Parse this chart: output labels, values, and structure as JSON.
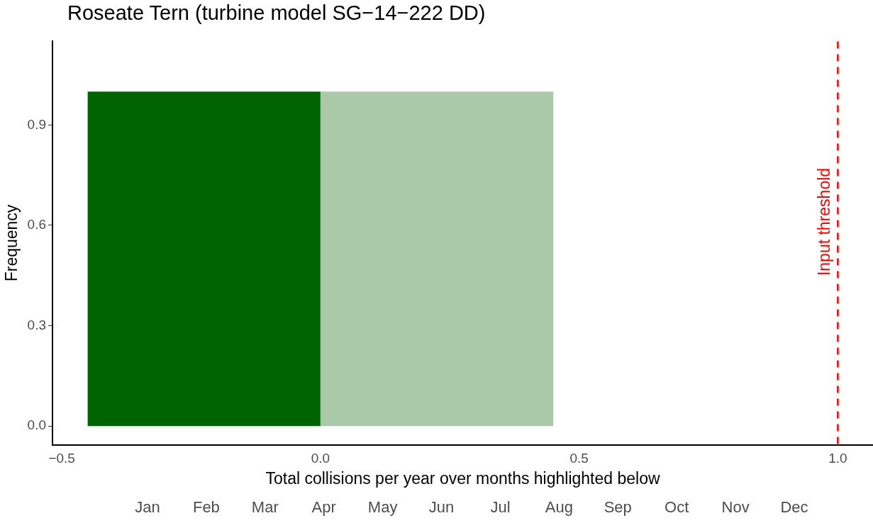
{
  "chart_data": {
    "type": "histogram",
    "title": "Roseate Tern (turbine model SG−14−222 DD)",
    "xlabel": "Total collisions per year over months highlighted below",
    "ylabel": "Frequency",
    "bins": [
      -0.45,
      0,
      0.45
    ],
    "values": [
      1,
      1
    ],
    "colors": [
      "#006400",
      "#a9c9a9"
    ],
    "xlim": [
      -0.518,
      1.068
    ],
    "xticks": [
      {
        "value": -0.5,
        "label": "−0.5"
      },
      {
        "value": 0,
        "label": "0.0"
      },
      {
        "value": 0.5,
        "label": "0.5"
      },
      {
        "value": 1,
        "label": "1.0"
      }
    ],
    "ylim": [
      -0.056,
      1.15
    ],
    "yticks": [
      {
        "value": 0,
        "label": "0.0"
      },
      {
        "value": 0.3,
        "label": "0.3"
      },
      {
        "value": 0.6,
        "label": "0.6"
      },
      {
        "value": 0.9,
        "label": "0.9"
      }
    ],
    "grid": false,
    "legend": false,
    "ref_lines": [
      {
        "axis": "x",
        "value": 1,
        "label": "Input threshold",
        "color": "#ff0000",
        "line_style": "dashed"
      }
    ],
    "annotations": [
      "Jan",
      "Feb",
      "Mar",
      "Apr",
      "May",
      "Jun",
      "Jul",
      "Aug",
      "Sep",
      "Oct",
      "Nov",
      "Dec"
    ]
  }
}
